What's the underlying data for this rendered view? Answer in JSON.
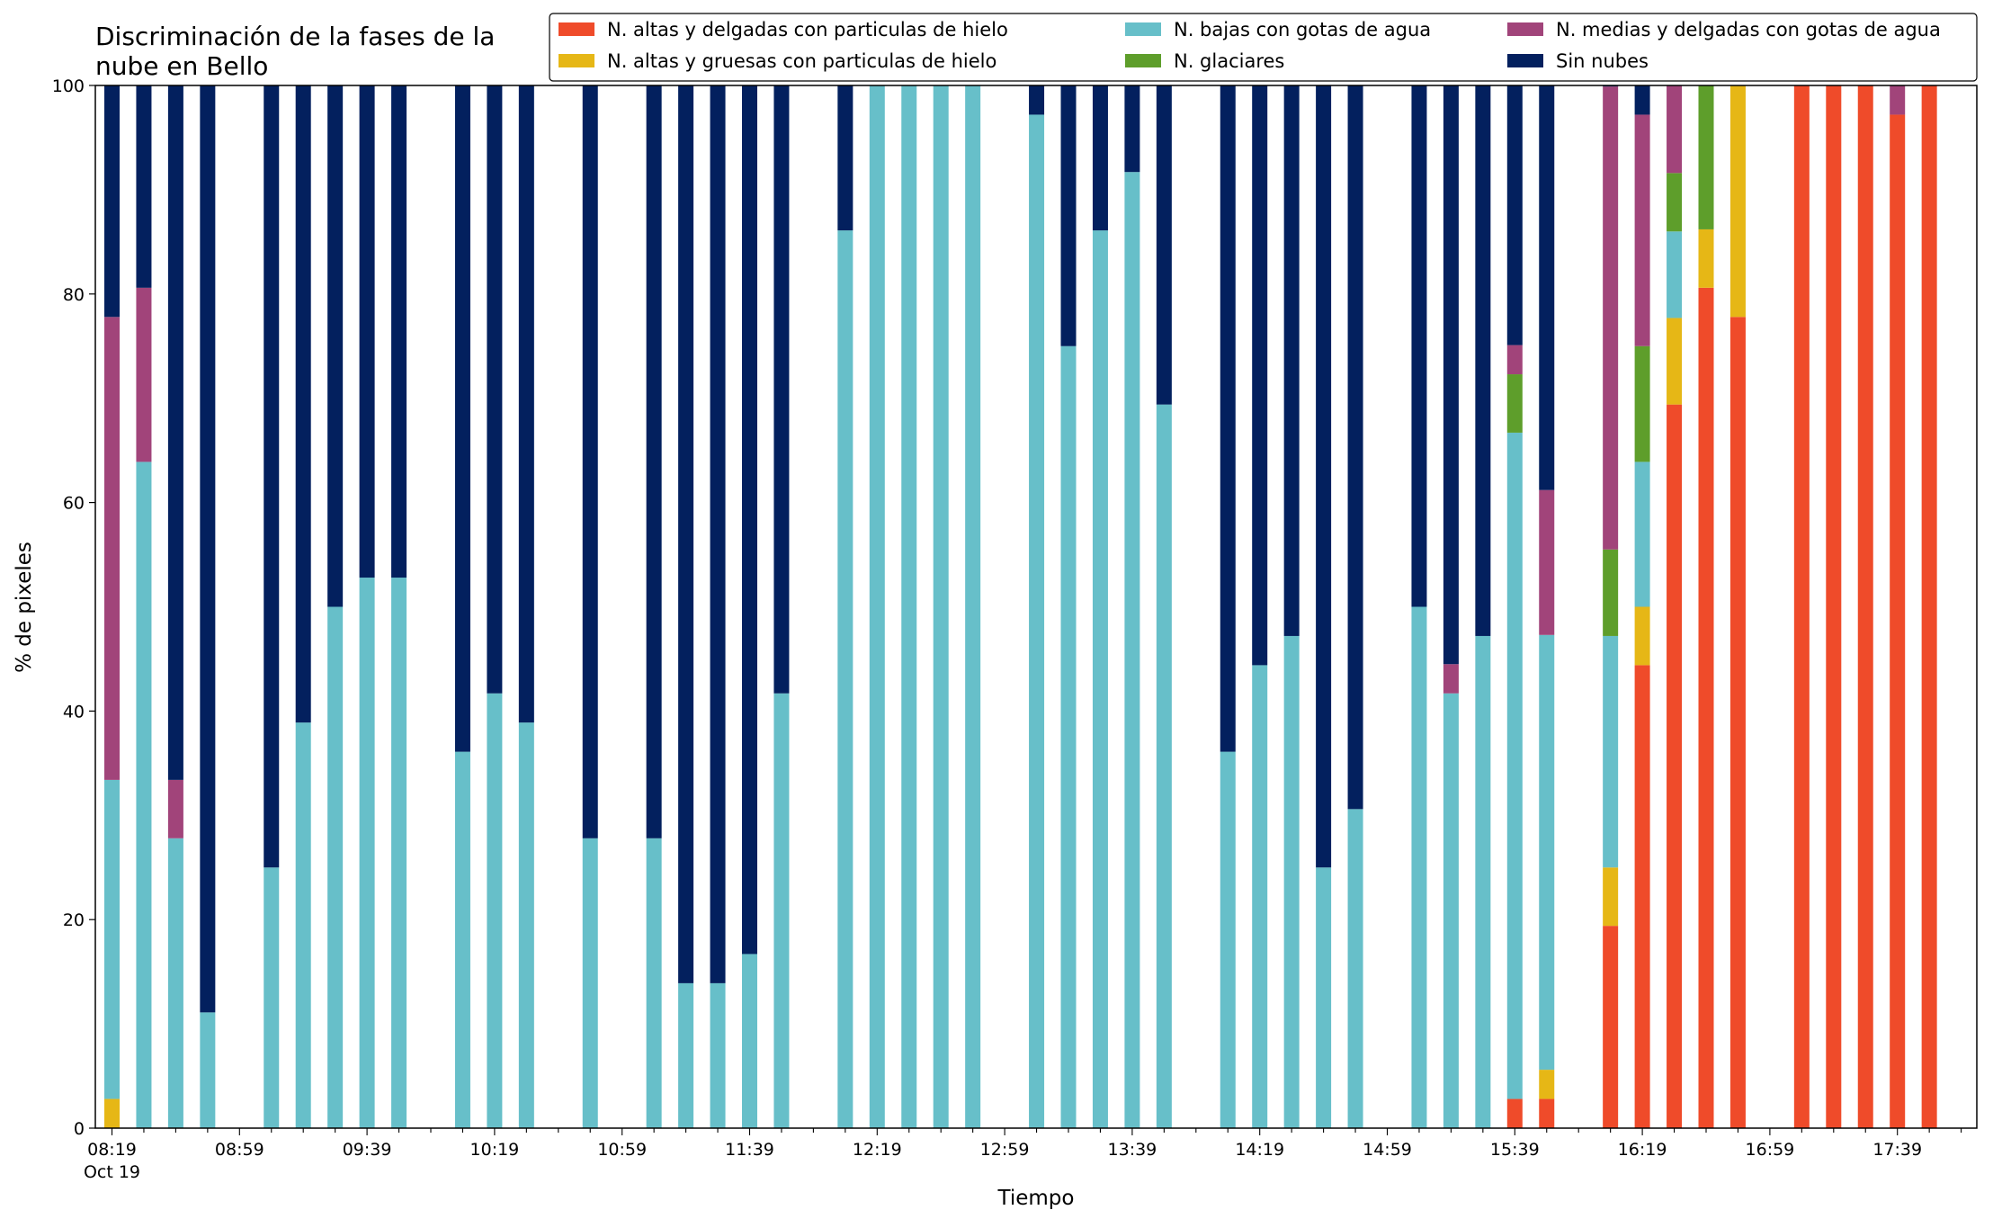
{
  "chart_data": {
    "type": "bar",
    "stacked": true,
    "title_lines": [
      "Discriminación de la fases de la",
      "nube en Bello"
    ],
    "xlabel": "Tiempo",
    "ylabel": "% de pixeles",
    "ylim": [
      0,
      100
    ],
    "yticks": [
      "0",
      "20",
      "40",
      "60",
      "80",
      "100"
    ],
    "grid": false,
    "legend_position": "top-right",
    "x_start": "08:19",
    "x_interval_minutes": 10,
    "x_count": 59,
    "xtick_labels": [
      "08:19",
      "08:59",
      "09:39",
      "10:19",
      "10:59",
      "11:39",
      "12:19",
      "12:59",
      "13:39",
      "14:19",
      "14:59",
      "15:39",
      "16:19",
      "16:59",
      "17:39"
    ],
    "xtick_date": "Oct 19",
    "series": [
      {
        "name": "N. altas y delgadas con particulas de hielo",
        "color": "#ef4b2a"
      },
      {
        "name": "N. altas y gruesas con particulas de hielo",
        "color": "#e6b716"
      },
      {
        "name": "N. bajas con gotas de agua",
        "color": "#67bfc9"
      },
      {
        "name": "N. glaciares",
        "color": "#5e9e2b"
      },
      {
        "name": "N. medias y delgadas con gotas de agua",
        "color": "#a1447a"
      },
      {
        "name": "Sin nubes",
        "color": "#03205e"
      }
    ],
    "bars": [
      {
        "i": 0,
        "values": [
          0,
          2.8,
          30.6,
          0,
          44.4,
          22.2
        ]
      },
      {
        "i": 1,
        "values": [
          0,
          0,
          63.9,
          0,
          16.7,
          19.4
        ]
      },
      {
        "i": 2,
        "values": [
          0,
          0,
          27.8,
          0,
          5.6,
          66.6
        ]
      },
      {
        "i": 3,
        "values": [
          0,
          0,
          11.1,
          0,
          0,
          88.9
        ]
      },
      {
        "i": 5,
        "values": [
          0,
          0,
          25.0,
          0,
          0,
          75.0
        ]
      },
      {
        "i": 6,
        "values": [
          0,
          0,
          38.9,
          0,
          0,
          61.1
        ]
      },
      {
        "i": 7,
        "values": [
          0,
          0,
          50.0,
          0,
          0,
          50.0
        ]
      },
      {
        "i": 8,
        "values": [
          0,
          0,
          52.8,
          0,
          0,
          47.2
        ]
      },
      {
        "i": 9,
        "values": [
          0,
          0,
          52.8,
          0,
          0,
          47.2
        ]
      },
      {
        "i": 11,
        "values": [
          0,
          0,
          36.1,
          0,
          0,
          63.9
        ]
      },
      {
        "i": 12,
        "values": [
          0,
          0,
          41.7,
          0,
          0,
          58.3
        ]
      },
      {
        "i": 13,
        "values": [
          0,
          0,
          38.9,
          0,
          0,
          61.1
        ]
      },
      {
        "i": 15,
        "values": [
          0,
          0,
          27.8,
          0,
          0,
          72.2
        ]
      },
      {
        "i": 17,
        "values": [
          0,
          0,
          27.8,
          0,
          0,
          72.2
        ]
      },
      {
        "i": 18,
        "values": [
          0,
          0,
          13.9,
          0,
          0,
          86.1
        ]
      },
      {
        "i": 19,
        "values": [
          0,
          0,
          13.9,
          0,
          0,
          86.1
        ]
      },
      {
        "i": 20,
        "values": [
          0,
          0,
          16.7,
          0,
          0,
          83.3
        ]
      },
      {
        "i": 21,
        "values": [
          0,
          0,
          41.7,
          0,
          0,
          58.3
        ]
      },
      {
        "i": 23,
        "values": [
          0,
          0,
          86.1,
          0,
          0,
          13.9
        ]
      },
      {
        "i": 24,
        "values": [
          0,
          0,
          100,
          0,
          0,
          0
        ]
      },
      {
        "i": 25,
        "values": [
          0,
          0,
          100,
          0,
          0,
          0
        ]
      },
      {
        "i": 26,
        "values": [
          0,
          0,
          100,
          0,
          0,
          0
        ]
      },
      {
        "i": 27,
        "values": [
          0,
          0,
          100,
          0,
          0,
          0
        ]
      },
      {
        "i": 29,
        "values": [
          0,
          0,
          97.2,
          0,
          0,
          2.8
        ]
      },
      {
        "i": 30,
        "values": [
          0,
          0,
          75.0,
          0,
          0,
          25.0
        ]
      },
      {
        "i": 31,
        "values": [
          0,
          0,
          86.1,
          0,
          0,
          13.9
        ]
      },
      {
        "i": 32,
        "values": [
          0,
          0,
          91.7,
          0,
          0,
          8.3
        ]
      },
      {
        "i": 33,
        "values": [
          0,
          0,
          69.4,
          0,
          0,
          30.6
        ]
      },
      {
        "i": 35,
        "values": [
          0,
          0,
          36.1,
          0,
          0,
          63.9
        ]
      },
      {
        "i": 36,
        "values": [
          0,
          0,
          44.4,
          0,
          0,
          55.6
        ]
      },
      {
        "i": 37,
        "values": [
          0,
          0,
          47.2,
          0,
          0,
          52.8
        ]
      },
      {
        "i": 38,
        "values": [
          0,
          0,
          25.0,
          0,
          0,
          75.0
        ]
      },
      {
        "i": 39,
        "values": [
          0,
          0,
          30.6,
          0,
          0,
          69.4
        ]
      },
      {
        "i": 41,
        "values": [
          0,
          0,
          50.0,
          0,
          0,
          50.0
        ]
      },
      {
        "i": 42,
        "values": [
          0,
          0,
          41.7,
          0,
          2.8,
          55.5
        ]
      },
      {
        "i": 43,
        "values": [
          0,
          0,
          47.2,
          0,
          0,
          52.8
        ]
      },
      {
        "i": 44,
        "values": [
          2.8,
          0,
          63.9,
          5.6,
          2.8,
          24.9
        ]
      },
      {
        "i": 45,
        "values": [
          2.8,
          2.8,
          41.7,
          0,
          13.9,
          38.8
        ]
      },
      {
        "i": 47,
        "values": [
          19.4,
          5.6,
          22.2,
          8.3,
          44.4,
          0.1
        ]
      },
      {
        "i": 48,
        "values": [
          44.4,
          5.6,
          13.9,
          11.1,
          22.2,
          2.8
        ]
      },
      {
        "i": 49,
        "values": [
          69.4,
          8.3,
          8.3,
          5.6,
          8.4,
          0
        ]
      },
      {
        "i": 50,
        "values": [
          80.6,
          5.6,
          0,
          13.8,
          0,
          0
        ]
      },
      {
        "i": 51,
        "values": [
          77.8,
          22.2,
          0,
          0,
          0,
          0
        ]
      },
      {
        "i": 53,
        "values": [
          100,
          0,
          0,
          0,
          0,
          0
        ]
      },
      {
        "i": 54,
        "values": [
          100,
          0,
          0,
          0,
          0,
          0
        ]
      },
      {
        "i": 55,
        "values": [
          100,
          0,
          0,
          0,
          0,
          0
        ]
      },
      {
        "i": 56,
        "values": [
          97.2,
          0,
          0,
          0,
          2.8,
          0
        ]
      },
      {
        "i": 57,
        "values": [
          100,
          0,
          0,
          0,
          0,
          0
        ]
      }
    ]
  }
}
